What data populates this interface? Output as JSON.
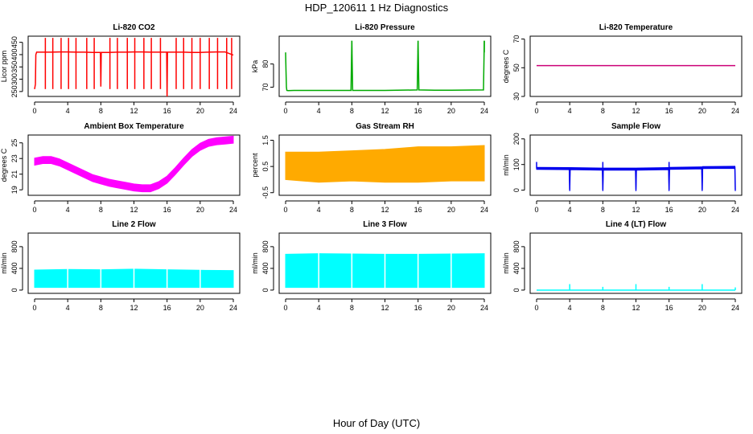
{
  "figure": {
    "title": "HDP_120611  1 Hz Diagnostics",
    "xlabel": "Hour of Day (UTC)"
  },
  "chart_data": [
    {
      "id": "co2",
      "type": "line",
      "title": "Li-820 CO2",
      "ylabel": "Licor ppm",
      "xlim": [
        0,
        24
      ],
      "xticks": [
        0,
        4,
        8,
        12,
        16,
        20,
        24
      ],
      "ylim": [
        230,
        475
      ],
      "yticks": [
        250,
        300,
        350,
        400,
        450
      ],
      "color": "#ff0000",
      "x": [
        0.0,
        0.1,
        0.15,
        0.25,
        0.5,
        1.0,
        2.0,
        3.0,
        4.0,
        5.0,
        6.0,
        7.0,
        7.95,
        8.0,
        8.05,
        9.0,
        10.0,
        11.0,
        12.0,
        13.0,
        14.0,
        15.0,
        15.95,
        16.0,
        16.05,
        17.0,
        18.0,
        19.0,
        20.0,
        21.0,
        22.0,
        23.0,
        24.0
      ],
      "y": [
        260,
        280,
        400,
        410,
        410,
        410,
        410,
        411,
        411,
        410,
        410,
        409,
        409,
        270,
        409,
        409,
        410,
        410,
        411,
        411,
        410,
        410,
        410,
        225,
        410,
        410,
        410,
        409,
        409,
        410,
        411,
        411,
        398
      ],
      "spikes_x": [
        1.3,
        2.2,
        3.2,
        4.1,
        5.0,
        6.3,
        7.2,
        9.1,
        10.0,
        11.2,
        12.1,
        13.2,
        14.1,
        15.2,
        17.1,
        18.0,
        19.0,
        20.0,
        21.1,
        22.1,
        23.2,
        23.8
      ],
      "spikes_top": 468
    },
    {
      "id": "pressure",
      "type": "line",
      "title": "Li-820 Pressure",
      "ylabel": "kPa",
      "xlim": [
        0,
        24
      ],
      "xticks": [
        0,
        4,
        8,
        12,
        16,
        20,
        24
      ],
      "ylim": [
        66,
        92
      ],
      "yticks": [
        70,
        80
      ],
      "color": "#00aa00",
      "x": [
        0.0,
        0.05,
        0.1,
        0.15,
        0.3,
        1.0,
        4.0,
        7.9,
        8.0,
        8.1,
        10.0,
        12.0,
        15.9,
        16.0,
        16.1,
        18.0,
        20.0,
        23.9,
        24.0
      ],
      "y": [
        85,
        77,
        70,
        68.6,
        68.5,
        68.6,
        68.6,
        68.6,
        90,
        68.6,
        68.6,
        68.6,
        68.8,
        90,
        68.8,
        68.7,
        68.7,
        68.8,
        90
      ],
      "spikes_x": [
        8.0,
        16.0,
        24.0
      ],
      "spikes_top": 90
    },
    {
      "id": "licor-temp",
      "type": "line",
      "title": "Li-820 Temperature",
      "ylabel": "degrees C",
      "xlim": [
        0,
        24
      ],
      "xticks": [
        0,
        4,
        8,
        12,
        16,
        20,
        24
      ],
      "ylim": [
        30,
        72
      ],
      "yticks": [
        30,
        50,
        70
      ],
      "color": "#cc0077",
      "x": [
        0,
        24
      ],
      "y": [
        51.5,
        51.5
      ]
    },
    {
      "id": "box-temp",
      "type": "line",
      "title": "Ambient Box Temperature",
      "ylabel": "degrees C",
      "xlim": [
        0,
        24
      ],
      "xticks": [
        0,
        4,
        8,
        12,
        16,
        20,
        24
      ],
      "ylim": [
        18.3,
        26
      ],
      "yticks": [
        19,
        21,
        23,
        25
      ],
      "color": "#ff00ff",
      "x": [
        0,
        1,
        2,
        3,
        4,
        5,
        6,
        7,
        8,
        9,
        10,
        11,
        12,
        13,
        14,
        15,
        16,
        17,
        18,
        19,
        20,
        21,
        22,
        23,
        24
      ],
      "y": [
        22.6,
        22.8,
        22.8,
        22.5,
        22.0,
        21.5,
        21.0,
        20.5,
        20.2,
        19.9,
        19.7,
        19.5,
        19.3,
        19.2,
        19.2,
        19.6,
        20.3,
        21.4,
        22.6,
        23.7,
        24.5,
        25.0,
        25.2,
        25.3,
        25.4
      ],
      "band_halfwidth": 0.45
    },
    {
      "id": "rh",
      "type": "line",
      "title": "Gas Stream RH",
      "ylabel": "percent",
      "xlim": [
        0,
        24
      ],
      "xticks": [
        0,
        4,
        8,
        12,
        16,
        20,
        24
      ],
      "ylim": [
        -0.6,
        1.7
      ],
      "yticks": [
        -0.5,
        0.5,
        1.5
      ],
      "color": "#ffaa00",
      "x": [
        0,
        4,
        8,
        12,
        16,
        20,
        24
      ],
      "low": [
        0.0,
        -0.1,
        -0.05,
        -0.1,
        -0.1,
        -0.05,
        -0.05
      ],
      "high": [
        1.05,
        1.05,
        1.1,
        1.15,
        1.25,
        1.25,
        1.3
      ]
    },
    {
      "id": "sample-flow",
      "type": "line",
      "title": "Sample Flow",
      "ylabel": "ml/min",
      "xlim": [
        0,
        24
      ],
      "xticks": [
        0,
        4,
        8,
        12,
        16,
        20,
        24
      ],
      "ylim": [
        -20,
        215
      ],
      "yticks": [
        0,
        100,
        200
      ],
      "color": "#0000ee",
      "x": [
        0,
        3.95,
        4.0,
        4.05,
        7.95,
        8.0,
        8.05,
        11.95,
        12.0,
        12.05,
        15.95,
        16.0,
        16.05,
        19.95,
        20.0,
        20.05,
        23.95,
        24.0
      ],
      "y": [
        85,
        84,
        0,
        84,
        82,
        0,
        82,
        82,
        0,
        82,
        84,
        0,
        85,
        87,
        0,
        88,
        89,
        0
      ],
      "spikes_x": [
        0.0,
        8.0,
        16.0
      ],
      "spikes_top": 110,
      "band_halfwidth": 4
    },
    {
      "id": "line2-flow",
      "type": "line",
      "title": "Line 2 Flow",
      "ylabel": "ml/min",
      "xlim": [
        0,
        24
      ],
      "xticks": [
        0,
        4,
        8,
        12,
        16,
        20,
        24
      ],
      "ylim": [
        -60,
        1050
      ],
      "yticks": [
        0,
        400,
        800
      ],
      "color": "#00ffff",
      "x": [
        0,
        4,
        8,
        12,
        16,
        20,
        24
      ],
      "low": [
        50,
        50,
        50,
        50,
        50,
        50,
        50
      ],
      "high": [
        370,
        380,
        375,
        385,
        375,
        365,
        360
      ],
      "gaps_x": [
        4,
        8,
        12,
        16,
        20
      ]
    },
    {
      "id": "line3-flow",
      "type": "line",
      "title": "Line 3 Flow",
      "ylabel": "ml/min",
      "xlim": [
        0,
        24
      ],
      "xticks": [
        0,
        4,
        8,
        12,
        16,
        20,
        24
      ],
      "ylim": [
        -60,
        1050
      ],
      "yticks": [
        0,
        400,
        800
      ],
      "color": "#00ffff",
      "x": [
        0,
        4,
        8,
        12,
        16,
        20,
        24
      ],
      "low": [
        50,
        50,
        50,
        50,
        50,
        50,
        50
      ],
      "high": [
        660,
        670,
        665,
        660,
        660,
        665,
        670
      ],
      "gaps_x": [
        4,
        8,
        12,
        16,
        20
      ]
    },
    {
      "id": "line4-flow",
      "type": "line",
      "title": "Line 4 (LT) Flow",
      "ylabel": "ml/min",
      "xlim": [
        0,
        24
      ],
      "xticks": [
        0,
        4,
        8,
        12,
        16,
        20,
        24
      ],
      "ylim": [
        -60,
        1050
      ],
      "yticks": [
        0,
        400,
        800
      ],
      "color": "#00ffff",
      "x": [
        0,
        4,
        8,
        12,
        16,
        20,
        24
      ],
      "y": [
        0,
        0,
        0,
        0,
        0,
        0,
        0
      ],
      "spikes_x": [
        4.0,
        8.0,
        12.0,
        16.0,
        20.0,
        24.0
      ],
      "spikes_y": [
        110,
        60,
        110,
        60,
        110,
        50
      ]
    }
  ]
}
